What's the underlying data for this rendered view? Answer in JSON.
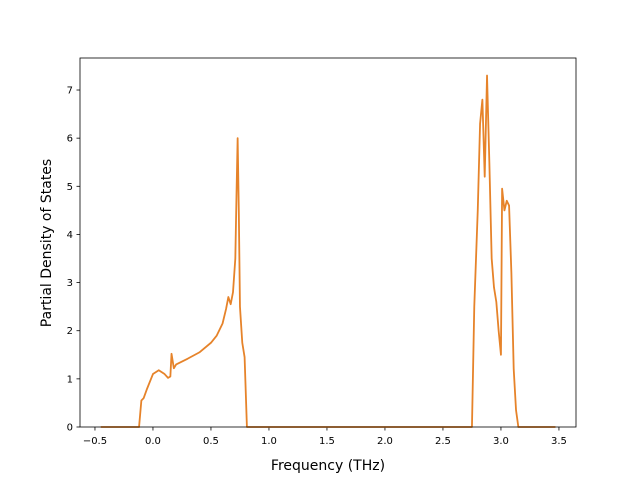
{
  "chart_data": {
    "type": "line",
    "xlabel": "Frequency (THz)",
    "ylabel": "Partial Density of States",
    "x": [
      -0.45,
      -0.12,
      -0.1,
      -0.08,
      -0.05,
      0,
      0.05,
      0.1,
      0.13,
      0.15,
      0.16,
      0.18,
      0.2,
      0.3,
      0.4,
      0.5,
      0.55,
      0.6,
      0.63,
      0.65,
      0.67,
      0.69,
      0.71,
      0.72,
      0.73,
      0.74,
      0.75,
      0.77,
      0.79,
      0.81,
      2.75,
      2.77,
      2.8,
      2.82,
      2.84,
      2.86,
      2.88,
      2.9,
      2.92,
      2.94,
      2.96,
      2.98,
      3.0,
      3.01,
      3.03,
      3.05,
      3.07,
      3.09,
      3.11,
      3.13,
      3.15,
      3.47
    ],
    "series": [
      {
        "color": "#e6832a",
        "values": [
          0,
          0,
          0.55,
          0.6,
          0.8,
          1.1,
          1.18,
          1.1,
          1.02,
          1.05,
          1.52,
          1.22,
          1.3,
          1.42,
          1.55,
          1.75,
          1.9,
          2.15,
          2.45,
          2.7,
          2.55,
          2.8,
          3.5,
          4.8,
          6.0,
          4.5,
          2.5,
          1.75,
          1.45,
          0,
          0,
          2.5,
          4.5,
          6.3,
          6.8,
          5.2,
          7.3,
          5.5,
          3.5,
          2.9,
          2.6,
          2.0,
          1.5,
          4.95,
          4.5,
          4.7,
          4.6,
          3.2,
          1.2,
          0.35,
          0,
          0
        ]
      }
    ],
    "xlim": [
      -0.629,
      3.647
    ],
    "ylim": [
      0,
      7.665
    ],
    "xticks": [
      {
        "value": -0.5,
        "label": "−0.5"
      },
      {
        "value": 0,
        "label": "0.0"
      },
      0.5,
      {
        "value": 1,
        "label": "1.0"
      },
      1.5,
      {
        "value": 2,
        "label": "2.0"
      },
      2.5,
      {
        "value": 3,
        "label": "3.0"
      },
      3.5
    ],
    "yticks": [
      0,
      1,
      2,
      3,
      4,
      5,
      6,
      7
    ]
  }
}
